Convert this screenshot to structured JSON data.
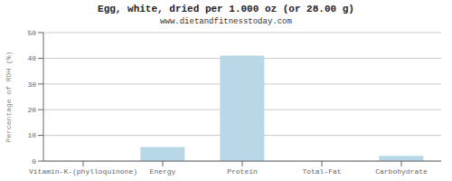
{
  "chart_data": {
    "type": "bar",
    "title": "Egg, white, dried per 1.000 oz (or 28.00 g)",
    "subtitle": "www.dietandfitnesstoday.com",
    "categories": [
      "Vitamin-K-(phylloquinone)",
      "Energy",
      "Protein",
      "Total-Fat",
      "Carbohydrate"
    ],
    "values": [
      0,
      5.5,
      41,
      0,
      2.0
    ],
    "color": "#b8d8e8",
    "ylabel": "Percentage of RDH (%)",
    "ylim": [
      0,
      50
    ],
    "yticks": [
      0,
      10,
      20,
      30,
      40,
      50
    ],
    "grid": true
  }
}
